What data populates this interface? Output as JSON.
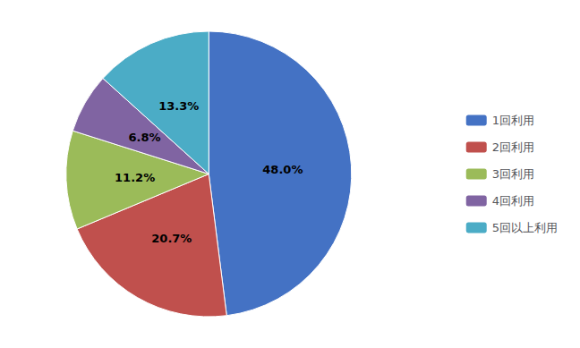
{
  "chart_data": {
    "type": "pie",
    "categories": [
      "1回利用",
      "2回利用",
      "3回利用",
      "4回利用",
      "5回以上利用"
    ],
    "values": [
      48.0,
      20.7,
      11.2,
      6.8,
      13.3
    ],
    "value_labels": [
      "48.0%",
      "20.7%",
      "11.2%",
      "6.8%",
      "13.3%"
    ],
    "colors": [
      "#4472C4",
      "#C0504D",
      "#9BBB59",
      "#8064A2",
      "#4BACC6"
    ],
    "data_labels": true,
    "legend": "right"
  }
}
